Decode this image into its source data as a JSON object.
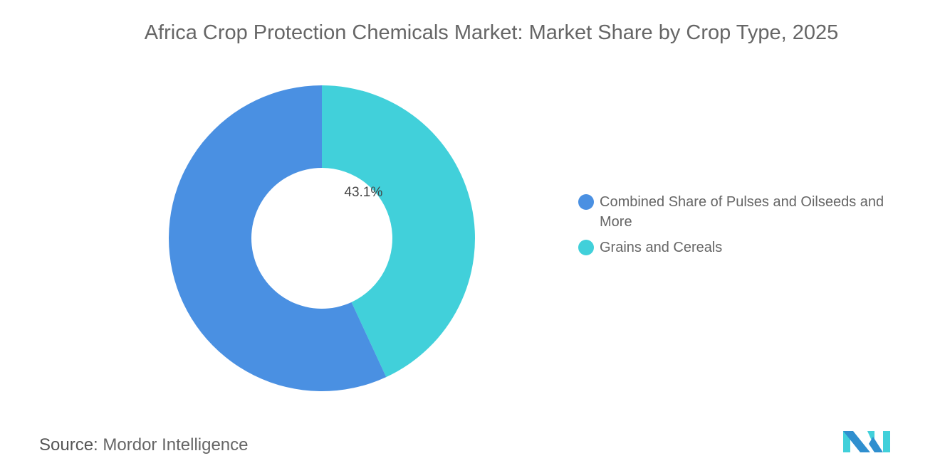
{
  "title": "Africa Crop Protection Chemicals Market: Market Share by Crop Type, 2025",
  "chart_data": {
    "type": "pie",
    "donut": true,
    "title": "Africa Crop Protection Chemicals Market: Market Share by Crop Type, 2025",
    "categories": [
      "Combined Share of Pulses and Oilseeds and More",
      "Grains and Cereals"
    ],
    "values": [
      56.9,
      43.1
    ],
    "data_labels": [
      "",
      "43.1%"
    ],
    "colors": [
      "#4a90e2",
      "#41d0da"
    ],
    "legend_placement": "right"
  },
  "source": {
    "label": "Source:",
    "value": "Mordor Intelligence"
  },
  "logo": {
    "text": "Mordor Intelligence",
    "colors": [
      "#2f8fcf",
      "#41d0da"
    ]
  }
}
